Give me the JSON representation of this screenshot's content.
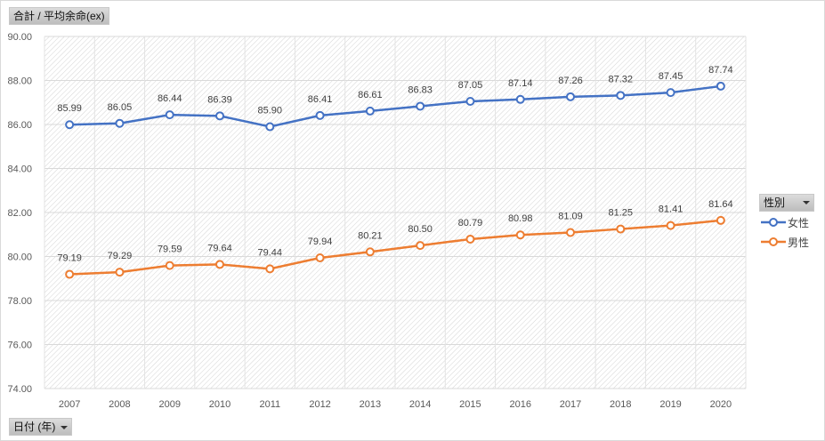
{
  "value_field_button": "合計 / 平均余命(ex)",
  "axis_field_button": "日付 (年)",
  "legend_field_button": "性別",
  "colors": {
    "female": "#4472c4",
    "male": "#ed7d31"
  },
  "chart_data": {
    "type": "line",
    "categories": [
      "2007",
      "2008",
      "2009",
      "2010",
      "2011",
      "2012",
      "2013",
      "2014",
      "2015",
      "2016",
      "2017",
      "2018",
      "2019",
      "2020"
    ],
    "series": [
      {
        "name": "女性",
        "values": [
          85.99,
          86.05,
          86.44,
          86.39,
          85.9,
          86.41,
          86.61,
          86.83,
          87.05,
          87.14,
          87.26,
          87.32,
          87.45,
          87.74
        ]
      },
      {
        "name": "男性",
        "values": [
          79.19,
          79.29,
          79.59,
          79.64,
          79.44,
          79.94,
          80.21,
          80.5,
          80.79,
          80.98,
          81.09,
          81.25,
          81.41,
          81.64
        ]
      }
    ],
    "yticks": [
      "74.00",
      "76.00",
      "78.00",
      "80.00",
      "82.00",
      "84.00",
      "86.00",
      "88.00",
      "90.00"
    ],
    "ylim": [
      74,
      90
    ],
    "grid": true,
    "legend": "right"
  }
}
